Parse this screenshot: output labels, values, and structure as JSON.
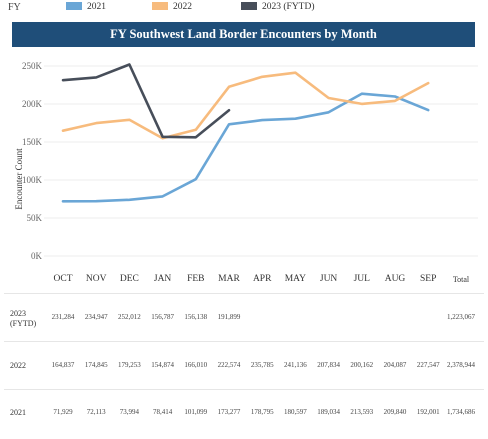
{
  "legend": {
    "label": "FY",
    "items": [
      {
        "name": "2021",
        "color": "#6aa6d6"
      },
      {
        "name": "2022",
        "color": "#f7bb7d"
      },
      {
        "name": "2023 (FYTD)",
        "color": "#474e5a"
      }
    ]
  },
  "chart_data": {
    "type": "line",
    "title": "FY Southwest Land Border Encounters by Month",
    "ylabel": "Encounter Count",
    "xlabel": "",
    "ylim": [
      0,
      250000
    ],
    "yticks": [
      "0K",
      "50K",
      "100K",
      "150K",
      "200K",
      "250K"
    ],
    "categories": [
      "OCT",
      "NOV",
      "DEC",
      "JAN",
      "FEB",
      "MAR",
      "APR",
      "MAY",
      "JUN",
      "JUL",
      "AUG",
      "SEP"
    ],
    "total_label": "Total",
    "grid": "horizontal",
    "legend_position": "top",
    "series": [
      {
        "name": "2023 (FYTD)",
        "row_label": "2023 (FYTD)",
        "color": "#474e5a",
        "values": [
          231284,
          234947,
          252012,
          156787,
          156138,
          191899,
          null,
          null,
          null,
          null,
          null,
          null
        ],
        "labels": [
          "231,284",
          "234,947",
          "252,012",
          "156,787",
          "156,138",
          "191,899",
          "",
          "",
          "",
          "",
          "",
          ""
        ],
        "total": "1,223,067"
      },
      {
        "name": "2022",
        "row_label": "2022",
        "color": "#f7bb7d",
        "values": [
          164837,
          174845,
          179253,
          154874,
          166010,
          222574,
          235785,
          241136,
          207834,
          200162,
          204087,
          227547
        ],
        "labels": [
          "164,837",
          "174,845",
          "179,253",
          "154,874",
          "166,010",
          "222,574",
          "235,785",
          "241,136",
          "207,834",
          "200,162",
          "204,087",
          "227,547"
        ],
        "total": "2,378,944"
      },
      {
        "name": "2021",
        "row_label": "2021",
        "color": "#6aa6d6",
        "values": [
          71929,
          72113,
          73994,
          78414,
          101099,
          173277,
          178795,
          180597,
          189034,
          213593,
          209840,
          192001
        ],
        "labels": [
          "71,929",
          "72,113",
          "73,994",
          "78,414",
          "101,099",
          "173,277",
          "178,795",
          "180,597",
          "189,034",
          "213,593",
          "209,840",
          "192,001"
        ],
        "total": "1,734,686"
      }
    ]
  }
}
